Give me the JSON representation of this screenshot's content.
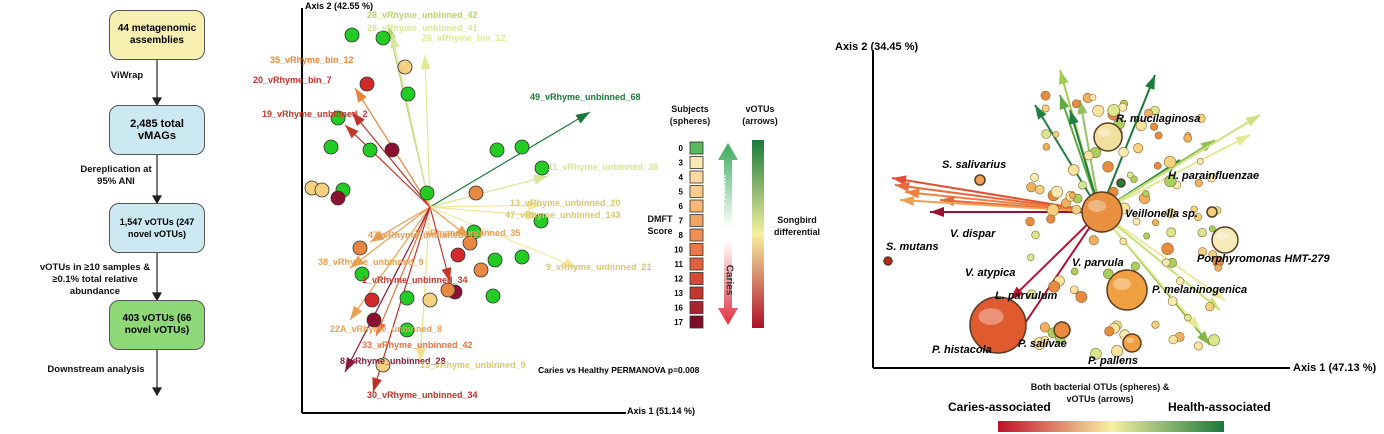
{
  "flowchart": {
    "nodes": [
      {
        "label": "44 metagenomic assemblies"
      },
      {
        "label": "2,485 total vMAGs"
      },
      {
        "label": "1,547 vOTUs (247 novel vOTUs)"
      },
      {
        "label": "403 vOTUs (66 novel vOTUs)"
      }
    ],
    "edges": [
      {
        "label": "ViWrap"
      },
      {
        "label": "Dereplication at 95% ANI"
      },
      {
        "label": "vOTUs in ≥10 samples & ≥0.1% total relative abundance"
      },
      {
        "label": "Downstream analysis"
      }
    ]
  },
  "votu_biplot": {
    "y_axis_label": "Axis 2 (42.55 %)",
    "x_axis_label": "Axis 1 (51.14 %)",
    "arrow_labels": [
      "28_vRhyme_unbinned_42",
      "26_vRhyme_unbinned_41",
      "26_vRhyme_bin_12",
      "35_vRhyme_bin_12",
      "20_vRhyme_bin_7",
      "19_vRhyme_unbinned_2",
      "49_vRhyme_unbinned_68",
      "11_vRhyme_unbinned_38",
      "13_vRhyme_unbinned_20",
      "47_vRhyme_unbinned_143",
      "47_vRhyme_unbinned_127",
      "8_vRhyme_unbinned_35",
      "9_vRhyme_unbinned_21",
      "38_vRhyme_unbinned_9",
      "1_vRhyme_unbinned_34",
      "22A_vRhyme_unbinned_8",
      "33_vRhyme_unbinned_42",
      "8_vRhyme_unbinned_28",
      "13_vRhyme_unbinned_9",
      "30_vRhyme_unbinned_34"
    ],
    "legend": {
      "subjects_title": "Subjects (spheres)",
      "arrows_title": "vOTUs (arrows)",
      "dmft_title": "DMFT Score",
      "dmft_scores": [
        0,
        3,
        4,
        5,
        6,
        7,
        8,
        10,
        11,
        12,
        13,
        16,
        17
      ],
      "health": "Health",
      "caries": "Caries",
      "songbird": "Songbird differential"
    },
    "permanova": "Caries vs Healthy PERMANOVA p=0.008"
  },
  "otu_biplot": {
    "y_axis_label": "Axis 2 (34.45 %)",
    "x_axis_label": "Axis 1 (47.13 %)",
    "taxa": [
      "R. mucilaginosa",
      "H. parainfluenzae",
      "S. salivarius",
      "Veillonella sp.",
      "V. dispar",
      "S. mutans",
      "V. atypica",
      "V. parvula",
      "Porphyromonas HMT-279",
      "P. melaninogenica",
      "L. parvulum",
      "P. salivae",
      "P. histacola",
      "P. pallens"
    ],
    "legend": {
      "title": "Both bacterial OTUs (spheres) & vOTUs (arrows)",
      "left": "Caries-associated",
      "right": "Health-associated"
    }
  }
}
